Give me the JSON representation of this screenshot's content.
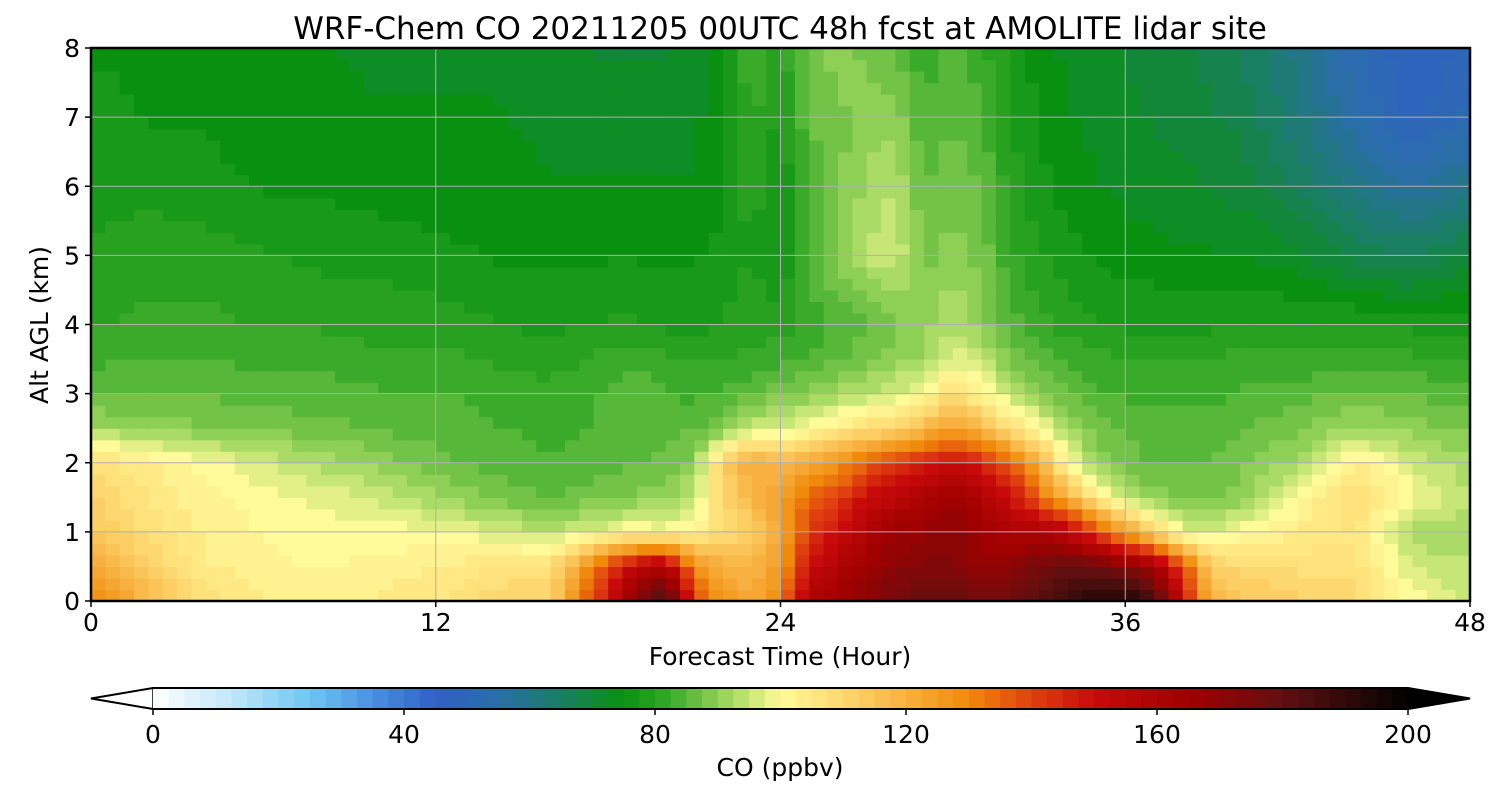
{
  "chart_data": {
    "type": "heatmap",
    "title": "WRF-Chem CO  20211205 00UTC 48h fcst at AMOLITE lidar site",
    "xlabel": "Forecast Time (Hour)",
    "ylabel": "Alt AGL (km)",
    "xlim": [
      0,
      48
    ],
    "ylim": [
      0,
      8
    ],
    "xticks": [
      "0",
      "12",
      "24",
      "36",
      "48"
    ],
    "yticks": [
      "0",
      "1",
      "2",
      "3",
      "4",
      "5",
      "6",
      "7",
      "8"
    ],
    "grid": true,
    "x": [
      0,
      2,
      4,
      6,
      8,
      10,
      12,
      14,
      16,
      18,
      19,
      20,
      21,
      22,
      23,
      24,
      25,
      26,
      27,
      28,
      29,
      30,
      31,
      32,
      33,
      34,
      35,
      36,
      37,
      38,
      39,
      40,
      42,
      44,
      46,
      48
    ],
    "y": [
      0,
      0.5,
      1,
      1.5,
      2,
      2.5,
      3,
      3.5,
      4,
      5,
      6,
      7,
      8
    ],
    "z": [
      [
        130,
        118,
        108,
        104,
        103,
        104,
        106,
        110,
        112,
        150,
        172,
        190,
        140,
        126,
        122,
        130,
        160,
        165,
        170,
        175,
        178,
        180,
        175,
        178,
        182,
        188,
        192,
        195,
        188,
        150,
        120,
        114,
        112,
        110,
        100,
        96
      ],
      [
        122,
        112,
        104,
        102,
        101,
        102,
        104,
        106,
        108,
        140,
        155,
        160,
        128,
        120,
        118,
        125,
        150,
        160,
        165,
        170,
        172,
        172,
        168,
        170,
        175,
        180,
        178,
        172,
        165,
        140,
        112,
        110,
        108,
        108,
        96,
        94
      ],
      [
        115,
        108,
        103,
        101,
        100,
        100,
        99,
        97,
        94,
        98,
        102,
        100,
        102,
        108,
        112,
        122,
        140,
        150,
        160,
        166,
        168,
        170,
        165,
        160,
        162,
        155,
        140,
        125,
        110,
        98,
        96,
        100,
        104,
        106,
        92,
        92
      ],
      [
        112,
        106,
        102,
        100,
        98,
        96,
        92,
        88,
        86,
        88,
        89,
        90,
        95,
        110,
        118,
        125,
        135,
        140,
        150,
        155,
        160,
        165,
        160,
        150,
        135,
        120,
        105,
        93,
        90,
        88,
        88,
        90,
        100,
        110,
        100,
        94
      ],
      [
        108,
        104,
        100,
        96,
        93,
        90,
        87,
        85,
        84,
        85,
        86,
        87,
        90,
        112,
        122,
        118,
        122,
        128,
        135,
        140,
        145,
        150,
        145,
        135,
        120,
        100,
        90,
        87,
        86,
        86,
        86,
        88,
        92,
        104,
        96,
        92
      ],
      [
        92,
        90,
        89,
        88,
        87,
        86,
        85,
        84,
        83,
        84,
        85,
        85,
        86,
        88,
        95,
        96,
        100,
        104,
        108,
        112,
        118,
        125,
        118,
        108,
        100,
        92,
        88,
        86,
        86,
        85,
        85,
        86,
        88,
        92,
        90,
        88
      ],
      [
        86,
        86,
        86,
        85,
        85,
        84,
        84,
        83,
        82,
        84,
        85,
        84,
        83,
        84,
        86,
        88,
        90,
        92,
        94,
        96,
        100,
        108,
        102,
        95,
        90,
        86,
        84,
        83,
        83,
        83,
        83,
        84,
        85,
        87,
        86,
        85
      ],
      [
        83,
        84,
        84,
        83,
        83,
        82,
        82,
        81,
        80,
        82,
        83,
        82,
        81,
        81,
        82,
        83,
        84,
        86,
        88,
        90,
        92,
        98,
        94,
        88,
        85,
        83,
        82,
        81,
        81,
        81,
        81,
        82,
        82,
        83,
        82,
        81
      ],
      [
        81,
        82,
        82,
        81,
        81,
        80,
        80,
        79,
        78,
        79,
        79,
        78,
        78,
        79,
        80,
        80,
        82,
        84,
        86,
        88,
        90,
        94,
        90,
        85,
        82,
        80,
        79,
        78,
        78,
        78,
        78,
        79,
        79,
        79,
        78,
        78
      ],
      [
        79,
        80,
        80,
        79,
        78,
        78,
        77,
        76,
        76,
        76,
        76,
        76,
        76,
        77,
        79,
        76,
        84,
        90,
        94,
        96,
        88,
        90,
        88,
        82,
        79,
        77,
        76,
        75,
        75,
        74,
        74,
        74,
        72,
        68,
        66,
        70
      ],
      [
        78,
        78,
        77,
        76,
        76,
        75,
        75,
        75,
        74,
        74,
        74,
        74,
        74,
        76,
        80,
        76,
        85,
        88,
        92,
        94,
        86,
        88,
        86,
        80,
        77,
        75,
        74,
        73,
        72,
        72,
        71,
        70,
        66,
        60,
        56,
        60
      ],
      [
        77,
        76,
        76,
        75,
        75,
        74,
        74,
        74,
        73,
        72,
        72,
        72,
        73,
        76,
        82,
        78,
        86,
        88,
        90,
        90,
        84,
        86,
        84,
        79,
        76,
        74,
        73,
        72,
        71,
        70,
        69,
        68,
        62,
        54,
        48,
        52
      ],
      [
        76,
        76,
        75,
        74,
        74,
        73,
        73,
        73,
        72,
        71,
        71,
        71,
        72,
        76,
        84,
        80,
        88,
        90,
        88,
        86,
        82,
        86,
        82,
        78,
        75,
        73,
        72,
        71,
        70,
        69,
        68,
        66,
        60,
        52,
        46,
        50
      ]
    ],
    "colorbar": {
      "label": "CO  (ppbv)",
      "min": 0,
      "max": 200,
      "ticks": [
        "0",
        "40",
        "80",
        "120",
        "160",
        "200"
      ],
      "extend": "both",
      "stops": [
        {
          "v": 0,
          "c": "#ffffff"
        },
        {
          "v": 12,
          "c": "#c4e8fa"
        },
        {
          "v": 25,
          "c": "#6ec6f2"
        },
        {
          "v": 35,
          "c": "#4a90e0"
        },
        {
          "v": 45,
          "c": "#3060c4"
        },
        {
          "v": 55,
          "c": "#2a6ea8"
        },
        {
          "v": 65,
          "c": "#1a7e62"
        },
        {
          "v": 75,
          "c": "#0a9010"
        },
        {
          "v": 82,
          "c": "#34a828"
        },
        {
          "v": 90,
          "c": "#8ecf55"
        },
        {
          "v": 95,
          "c": "#c6e676"
        },
        {
          "v": 100,
          "c": "#fffa9a"
        },
        {
          "v": 110,
          "c": "#fdd870"
        },
        {
          "v": 120,
          "c": "#f8b040"
        },
        {
          "v": 130,
          "c": "#f08a0a"
        },
        {
          "v": 140,
          "c": "#e04010"
        },
        {
          "v": 150,
          "c": "#c80a0a"
        },
        {
          "v": 165,
          "c": "#a00000"
        },
        {
          "v": 180,
          "c": "#601010"
        },
        {
          "v": 195,
          "c": "#1a0606"
        },
        {
          "v": 200,
          "c": "#000000"
        }
      ]
    }
  }
}
